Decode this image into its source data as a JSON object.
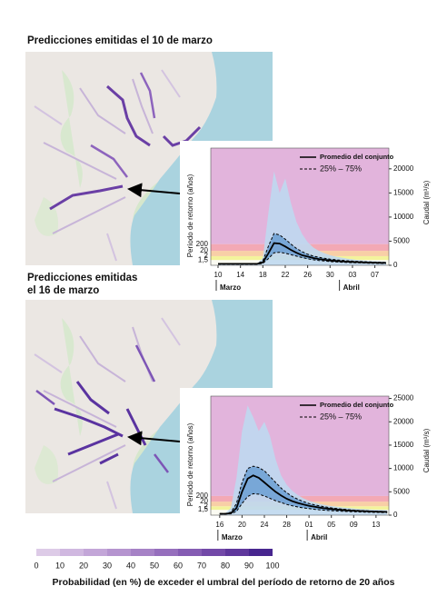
{
  "maps": [
    {
      "title": [
        "Predicciones emitidas el 10 de marzo"
      ]
    },
    {
      "title": [
        "Predicciones emitidas",
        "el 16 de marzo"
      ]
    }
  ],
  "chart_data": [
    {
      "type": "area",
      "x": [
        0,
        1,
        2,
        3,
        4,
        5,
        6,
        7,
        8,
        9,
        10,
        11,
        12,
        13,
        14,
        15,
        16,
        17,
        18,
        19,
        20,
        21,
        22,
        23,
        24,
        25,
        26,
        27,
        28,
        29,
        30
      ],
      "xlim": [
        -1.3,
        30.5
      ],
      "xticks": [
        {
          "value": 0,
          "label": "10"
        },
        {
          "value": 4,
          "label": "14"
        },
        {
          "value": 8,
          "label": "18"
        },
        {
          "value": 12,
          "label": "22"
        },
        {
          "value": 16,
          "label": "26"
        },
        {
          "value": 20,
          "label": "30"
        },
        {
          "value": 24,
          "label": "03"
        },
        {
          "value": 28,
          "label": "07"
        }
      ],
      "months": [
        {
          "name": "Marzo",
          "start": 0
        },
        {
          "name": "Abril",
          "start": 22
        }
      ],
      "ylim": [
        0,
        24300
      ],
      "yticks": [
        0,
        5000,
        10000,
        15000,
        20000
      ],
      "y_axis_label": "Caudal (m³/s)",
      "left_axis_label": "Período de retorno (años)",
      "background": "#e2b4dc",
      "thresholds": [
        {
          "period": "1,5",
          "flow": 1100,
          "color": "#f3f39c"
        },
        {
          "period": "2",
          "flow": 1900,
          "color": "#f8cfa6"
        },
        {
          "period": "20",
          "flow": 3000,
          "color": "#f3a9b5"
        },
        {
          "period": "200",
          "flow": 4400,
          "color": "#e2b4dc"
        }
      ],
      "spread": {
        "name": null,
        "color": "#bfd8ef",
        "max": [
          400,
          400,
          400,
          400,
          400,
          400,
          400,
          400,
          1500,
          11000,
          19500,
          15000,
          18000,
          13000,
          9000,
          6500,
          4800,
          3700,
          3000,
          2500,
          2100,
          1800,
          1600,
          1400,
          1250,
          1100,
          1000,
          900,
          850,
          800,
          760
        ]
      },
      "series": [
        {
          "name": "Promedio del conjunto",
          "color": "#000000",
          "dash": false,
          "values": [
            300,
            300,
            300,
            300,
            300,
            300,
            300,
            300,
            600,
            2500,
            4600,
            4500,
            3900,
            3200,
            2600,
            2100,
            1800,
            1500,
            1300,
            1150,
            1000,
            900,
            820,
            760,
            700,
            650,
            600,
            570,
            540,
            510,
            490
          ]
        },
        {
          "name": "25% – 75%",
          "color": "#000000",
          "dash": true,
          "band_color": "#5f97cf",
          "values": [
            350,
            350,
            350,
            350,
            350,
            350,
            350,
            350,
            900,
            4000,
            6600,
            6300,
            5400,
            4400,
            3500,
            2800,
            2300,
            1900,
            1650,
            1450,
            1280,
            1150,
            1040,
            950,
            870,
            810,
            750,
            700,
            660,
            620,
            590
          ],
          "values_low": [
            250,
            250,
            250,
            250,
            250,
            250,
            250,
            250,
            400,
            1400,
            2600,
            2700,
            2500,
            2200,
            1900,
            1600,
            1350,
            1150,
            1000,
            880,
            780,
            700,
            640,
            590,
            540,
            500,
            470,
            440,
            420,
            400,
            380
          ]
        }
      ]
    },
    {
      "type": "area",
      "x": [
        0,
        1,
        2,
        3,
        4,
        5,
        6,
        7,
        8,
        9,
        10,
        11,
        12,
        13,
        14,
        15,
        16,
        17,
        18,
        19,
        20,
        21,
        22,
        23,
        24,
        25,
        26,
        27,
        28,
        29,
        30
      ],
      "xlim": [
        -1.6,
        30.3
      ],
      "xticks": [
        {
          "value": 0,
          "label": "16"
        },
        {
          "value": 4,
          "label": "20"
        },
        {
          "value": 8,
          "label": "24"
        },
        {
          "value": 12,
          "label": "28"
        },
        {
          "value": 16,
          "label": "01"
        },
        {
          "value": 20,
          "label": "05"
        },
        {
          "value": 24,
          "label": "09"
        },
        {
          "value": 28,
          "label": "13"
        }
      ],
      "months": [
        {
          "name": "Marzo",
          "start": 0
        },
        {
          "name": "Abril",
          "start": 16
        }
      ],
      "ylim": [
        0,
        25500
      ],
      "yticks": [
        0,
        5000,
        10000,
        15000,
        20000,
        25000
      ],
      "y_axis_label": "Caudal (m³/s)",
      "left_axis_label": "Período de retorno (años)",
      "background": "#e2b4dc",
      "thresholds": [
        {
          "period": "1,5",
          "flow": 1150,
          "color": "#f3f39c"
        },
        {
          "period": "2",
          "flow": 1900,
          "color": "#f8cfa6"
        },
        {
          "period": "20",
          "flow": 2900,
          "color": "#f3a9b5"
        },
        {
          "period": "200",
          "flow": 4100,
          "color": "#e2b4dc"
        }
      ],
      "spread": {
        "name": null,
        "color": "#bfd8ef",
        "max": [
          400,
          400,
          1500,
          8000,
          18000,
          23500,
          21000,
          18000,
          20000,
          17000,
          12000,
          8500,
          6500,
          5200,
          4300,
          3600,
          3100,
          2700,
          2400,
          2150,
          1950,
          1800,
          1650,
          1550,
          1450,
          1350,
          1280,
          1200,
          1150,
          1100,
          1050
        ]
      },
      "series": [
        {
          "name": "Promedio del conjunto",
          "color": "#000000",
          "dash": false,
          "values": [
            300,
            300,
            400,
            1500,
            5000,
            7800,
            8500,
            8000,
            7000,
            6000,
            5000,
            4200,
            3500,
            3000,
            2600,
            2300,
            2000,
            1800,
            1600,
            1450,
            1300,
            1200,
            1100,
            1000,
            950,
            900,
            850,
            800,
            760,
            720,
            700
          ]
        },
        {
          "name": "25% – 75%",
          "color": "#000000",
          "dash": true,
          "band_color": "#5f97cf",
          "values": [
            350,
            350,
            600,
            2500,
            7000,
            10000,
            10500,
            10200,
            9500,
            8300,
            7000,
            5800,
            4800,
            4000,
            3400,
            2900,
            2500,
            2200,
            1950,
            1750,
            1550,
            1400,
            1280,
            1170,
            1080,
            1000,
            940,
            880,
            830,
            790,
            760
          ],
          "values_low": [
            250,
            250,
            300,
            800,
            2500,
            4000,
            4600,
            4500,
            4100,
            3600,
            3100,
            2700,
            2300,
            2000,
            1750,
            1550,
            1400,
            1250,
            1130,
            1030,
            950,
            880,
            820,
            770,
            720,
            680,
            640,
            610,
            580,
            560,
            540
          ]
        }
      ]
    }
  ],
  "colorbar": {
    "ticks": [
      0,
      10,
      20,
      30,
      40,
      50,
      60,
      70,
      80,
      90,
      100
    ],
    "colors": [
      "#ddcbe7",
      "#d0b8e0",
      "#c3a6d8",
      "#b594cf",
      "#a682c6",
      "#966fbd",
      "#855cb3",
      "#7349a8",
      "#5f379c",
      "#48268f"
    ],
    "label": "Probabilidad (en %) de exceder el umbral del período de retorno de 20 años"
  }
}
